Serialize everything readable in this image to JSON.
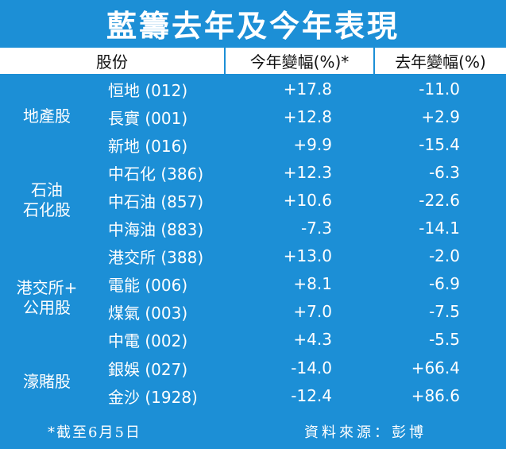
{
  "title": "藍籌去年及今年表現",
  "headers": {
    "stock": "股份",
    "this_year": "今年變幅(%)*",
    "last_year": "去年變幅(%)"
  },
  "groups": [
    {
      "name_lines": [
        "地產股"
      ]
    },
    {
      "name_lines": [
        "石油",
        "石化股"
      ]
    },
    {
      "name_lines": [
        "港交所+",
        "公用股"
      ]
    },
    {
      "name_lines": [
        "濠賭股"
      ]
    }
  ],
  "rows": [
    {
      "stock": "恒地 (012)",
      "this_year": "+17.8",
      "last_year": "-11.0"
    },
    {
      "stock": "長實 (001)",
      "this_year": "+12.8",
      "last_year": "+2.9"
    },
    {
      "stock": "新地 (016)",
      "this_year": "+9.9",
      "last_year": "-15.4"
    },
    {
      "stock": "中石化 (386)",
      "this_year": "+12.3",
      "last_year": "-6.3"
    },
    {
      "stock": "中石油 (857)",
      "this_year": "+10.6",
      "last_year": "-22.6"
    },
    {
      "stock": "中海油 (883)",
      "this_year": "-7.3",
      "last_year": "-14.1"
    },
    {
      "stock": "港交所 (388)",
      "this_year": "+13.0",
      "last_year": "-2.0"
    },
    {
      "stock": "電能 (006)",
      "this_year": "+8.1",
      "last_year": "-6.9"
    },
    {
      "stock": "煤氣 (003)",
      "this_year": "+7.0",
      "last_year": "-7.5"
    },
    {
      "stock": "中電 (002)",
      "this_year": "+4.3",
      "last_year": "-5.5"
    },
    {
      "stock": "銀娛 (027)",
      "this_year": "-14.0",
      "last_year": "+66.4"
    },
    {
      "stock": "金沙 (1928)",
      "this_year": "-12.4",
      "last_year": "+86.6"
    }
  ],
  "footer": {
    "note": "*截至6月5日",
    "source": "資料來源：彭博"
  },
  "colors": {
    "background": "#1c8fd6",
    "header_bg": "#ffffff",
    "text": "#ffffff"
  }
}
